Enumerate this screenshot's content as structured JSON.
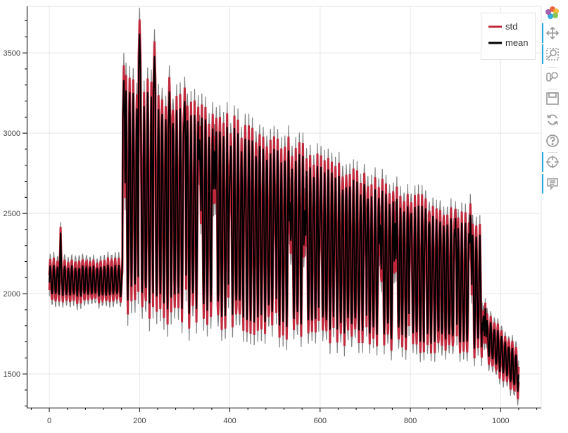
{
  "chart_data": {
    "type": "line",
    "title": "",
    "xlabel": "",
    "ylabel": "",
    "xlim": [
      -50,
      1090
    ],
    "ylim": [
      1290,
      3790
    ],
    "x_ticks": [
      0,
      200,
      400,
      600,
      800,
      1000
    ],
    "y_ticks": [
      1500,
      2000,
      2500,
      3000,
      3500
    ],
    "x_tick_labels": [
      "0",
      "200",
      "400",
      "600",
      "800",
      "1000"
    ],
    "y_tick_labels": [
      "1500",
      "2000",
      "2500",
      "3000",
      "3500"
    ],
    "grid": true,
    "legend_position": "top-right",
    "x_range": [
      0,
      1040
    ],
    "periods": [
      {
        "x_start": 0,
        "x_end": 165,
        "base": 2080,
        "amplitude": 90,
        "period": 8
      },
      {
        "x_start": 165,
        "x_end": 960,
        "base_start": 2620,
        "base_end": 2020,
        "amplitude_start": 620,
        "amplitude_end": 340,
        "period": 8
      },
      {
        "x_start": 960,
        "x_end": 1040,
        "base_start": 1760,
        "base_end": 1500,
        "amplitude": 110,
        "period": 8
      }
    ],
    "peaks": [
      {
        "x": 25,
        "y": 2380
      },
      {
        "x": 165,
        "y": 3330
      },
      {
        "x": 200,
        "y": 3620
      },
      {
        "x": 233,
        "y": 3480
      },
      {
        "x": 266,
        "y": 3260
      },
      {
        "x": 300,
        "y": 3200
      },
      {
        "x": 333,
        "y": 2960
      },
      {
        "x": 366,
        "y": 2890
      },
      {
        "x": 400,
        "y": 2720
      },
      {
        "x": 433,
        "y": 2680
      },
      {
        "x": 466,
        "y": 2610
      },
      {
        "x": 500,
        "y": 2560
      },
      {
        "x": 533,
        "y": 2570
      },
      {
        "x": 566,
        "y": 2520
      },
      {
        "x": 600,
        "y": 2470
      },
      {
        "x": 633,
        "y": 2440
      },
      {
        "x": 666,
        "y": 2480
      },
      {
        "x": 700,
        "y": 2460
      },
      {
        "x": 733,
        "y": 2430
      },
      {
        "x": 766,
        "y": 2440
      },
      {
        "x": 800,
        "y": 2420
      },
      {
        "x": 833,
        "y": 2460
      },
      {
        "x": 866,
        "y": 2450
      },
      {
        "x": 900,
        "y": 2470
      },
      {
        "x": 933,
        "y": 2490
      },
      {
        "x": 966,
        "y": 1910
      }
    ],
    "series": [
      {
        "name": "std",
        "color": "#c0283c",
        "width": 3
      },
      {
        "name": "mean",
        "color": "#000000",
        "width": 2
      }
    ],
    "band_color": "#808080"
  },
  "toolbar": {
    "tools": [
      {
        "name": "bokeh-logo-icon",
        "active": false
      },
      {
        "name": "pan-icon",
        "active": true
      },
      {
        "name": "box-zoom-icon",
        "active": true
      },
      {
        "name": "wheel-zoom-icon",
        "active": false
      },
      {
        "name": "save-icon",
        "active": false
      },
      {
        "name": "reset-icon",
        "active": false
      },
      {
        "name": "help-icon",
        "active": false
      },
      {
        "name": "crosshair-icon",
        "active": true
      },
      {
        "name": "hover-icon",
        "active": true
      }
    ]
  }
}
